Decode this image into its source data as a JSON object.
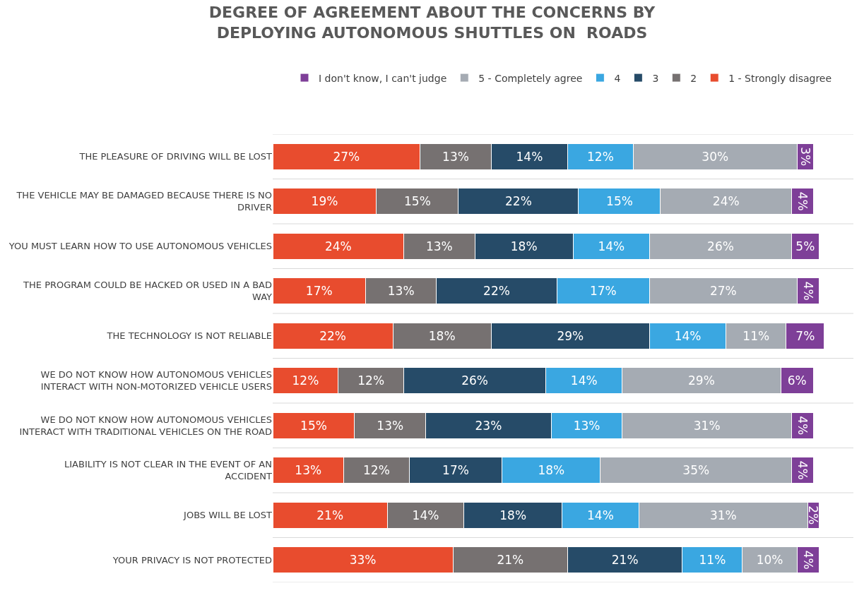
{
  "chart_data": {
    "type": "bar",
    "orientation": "horizontal",
    "stacked": true,
    "title": "DEGREE OF AGREEMENT ABOUT THE CONCERNS BY DEPLOYING AUTONOMOUS SHUTTLES ON  ROADS",
    "legend": "top",
    "grid": "y",
    "tick_labels": "y",
    "categories": [
      "THE PLEASURE OF DRIVING WILL BE LOST",
      "THE VEHICLE MAY BE DAMAGED BECAUSE THERE IS NO DRIVER",
      "YOU MUST LEARN HOW TO USE AUTONOMOUS VEHICLES",
      "THE PROGRAM COULD BE HACKED OR USED IN A BAD WAY",
      "THE TECHNOLOGY IS NOT RELIABLE",
      "WE DO NOT KNOW HOW AUTONOMOUS VEHICLES INTERACT WITH NON-MOTORIZED VEHICLE USERS",
      "WE DO NOT KNOW HOW AUTONOMOUS VEHICLES INTERACT WITH TRADITIONAL VEHICLES ON THE ROAD",
      "LIABILITY IS NOT CLEAR IN THE EVENT OF AN ACCIDENT",
      "JOBS WILL BE LOST",
      "YOUR PRIVACY IS NOT PROTECTED"
    ],
    "series": [
      {
        "name": "1 - Strongly disagree",
        "color": "#e84c2e",
        "values": [
          27,
          19,
          24,
          17,
          22,
          12,
          15,
          13,
          21,
          33
        ],
        "value_labels": [
          "27%",
          "19%",
          "24%",
          "17%",
          "22%",
          "12%",
          "15%",
          "13%",
          "21%",
          "33%"
        ]
      },
      {
        "name": "2",
        "color": "#767171",
        "values": [
          13,
          15,
          13,
          13,
          18,
          12,
          13,
          12,
          14,
          21
        ],
        "value_labels": [
          "13%",
          "15%",
          "13%",
          "13%",
          "18%",
          "12%",
          "13%",
          "12%",
          "14%",
          "21%"
        ]
      },
      {
        "name": "3",
        "color": "#264b68",
        "values": [
          14,
          22,
          18,
          22,
          29,
          26,
          23,
          17,
          18,
          21
        ],
        "value_labels": [
          "14%",
          "22%",
          "18%",
          "22%",
          "29%",
          "26%",
          "23%",
          "17%",
          "18%",
          "21%"
        ]
      },
      {
        "name": "4",
        "color": "#3aa7e1",
        "values": [
          12,
          15,
          14,
          17,
          14,
          14,
          13,
          18,
          14,
          11
        ],
        "value_labels": [
          "12%",
          "15%",
          "14%",
          "17%",
          "14%",
          "14%",
          "13%",
          "18%",
          "14%",
          "11%"
        ]
      },
      {
        "name": "5 - Completely agree",
        "color": "#a5abb3",
        "values": [
          30,
          24,
          26,
          27,
          11,
          29,
          31,
          35,
          31,
          10
        ],
        "value_labels": [
          "30%",
          "24%",
          "26%",
          "27%",
          "11%",
          "29%",
          "31%",
          "35%",
          "31%",
          "10%"
        ]
      },
      {
        "name": "I don't know, I can't judge",
        "color": "#7e3f98",
        "values": [
          3,
          4,
          5,
          4,
          7,
          6,
          4,
          4,
          2,
          4
        ],
        "value_labels": [
          "3%",
          "4%",
          "5%",
          "4%",
          "7%",
          "6%",
          "4%",
          "4%",
          "2%",
          "4%"
        ]
      }
    ]
  }
}
